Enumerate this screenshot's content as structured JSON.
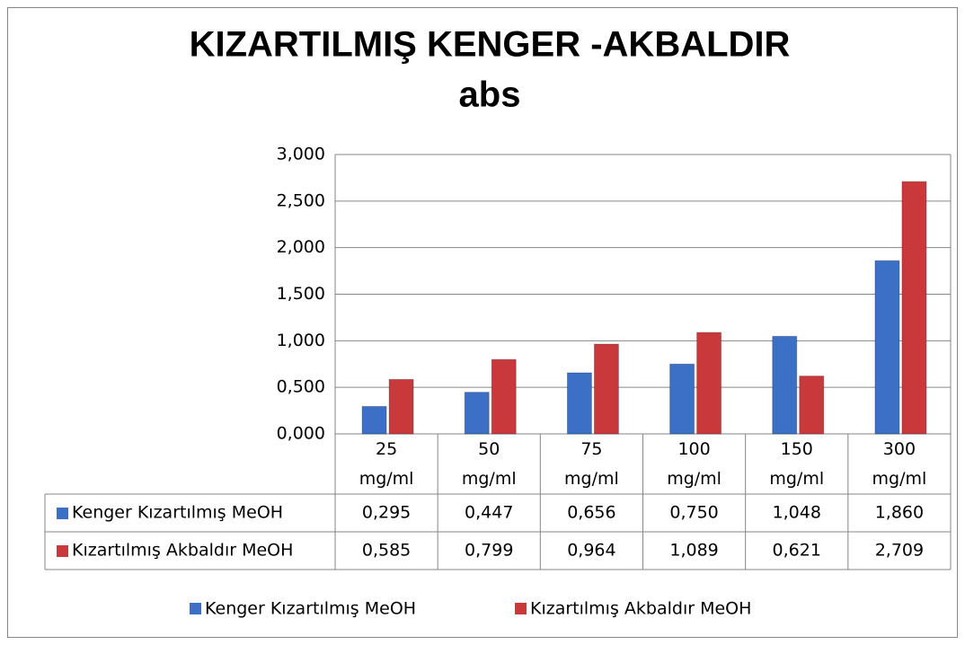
{
  "chart_data": {
    "type": "bar",
    "title": "KIZARTILMIŞ KENGER -AKBALDIR",
    "subtitle": "abs",
    "categories": [
      "25 mg/ml",
      "50 mg/ml",
      "75 mg/ml",
      "100 mg/ml",
      "150 mg/ml",
      "300 mg/ml"
    ],
    "series": [
      {
        "name": "Kenger Kızartılmış MeOH",
        "color": "#3c6fc6",
        "values": [
          0.295,
          0.447,
          0.656,
          0.75,
          1.048,
          1.86
        ],
        "value_labels": [
          "0,295",
          "0,447",
          "0,656",
          "0,750",
          "1,048",
          "1,860"
        ]
      },
      {
        "name": "Kızartılmış Akbaldır MeOH",
        "color": "#c9393c",
        "values": [
          0.585,
          0.799,
          0.964,
          1.089,
          0.621,
          2.709
        ],
        "value_labels": [
          "0,585",
          "0,799",
          "0,964",
          "1,089",
          "0,621",
          "2,709"
        ]
      }
    ],
    "ylim": [
      0,
      3
    ],
    "yticks": [
      {
        "value": 0,
        "label": "0,000"
      },
      {
        "value": 0.5,
        "label": "0,500"
      },
      {
        "value": 1,
        "label": "1,000"
      },
      {
        "value": 1.5,
        "label": "1,500"
      },
      {
        "value": 2,
        "label": "2,000"
      },
      {
        "value": 2.5,
        "label": "2,500"
      },
      {
        "value": 3,
        "label": "3,000"
      }
    ],
    "grid": true,
    "legend": "bottom"
  }
}
